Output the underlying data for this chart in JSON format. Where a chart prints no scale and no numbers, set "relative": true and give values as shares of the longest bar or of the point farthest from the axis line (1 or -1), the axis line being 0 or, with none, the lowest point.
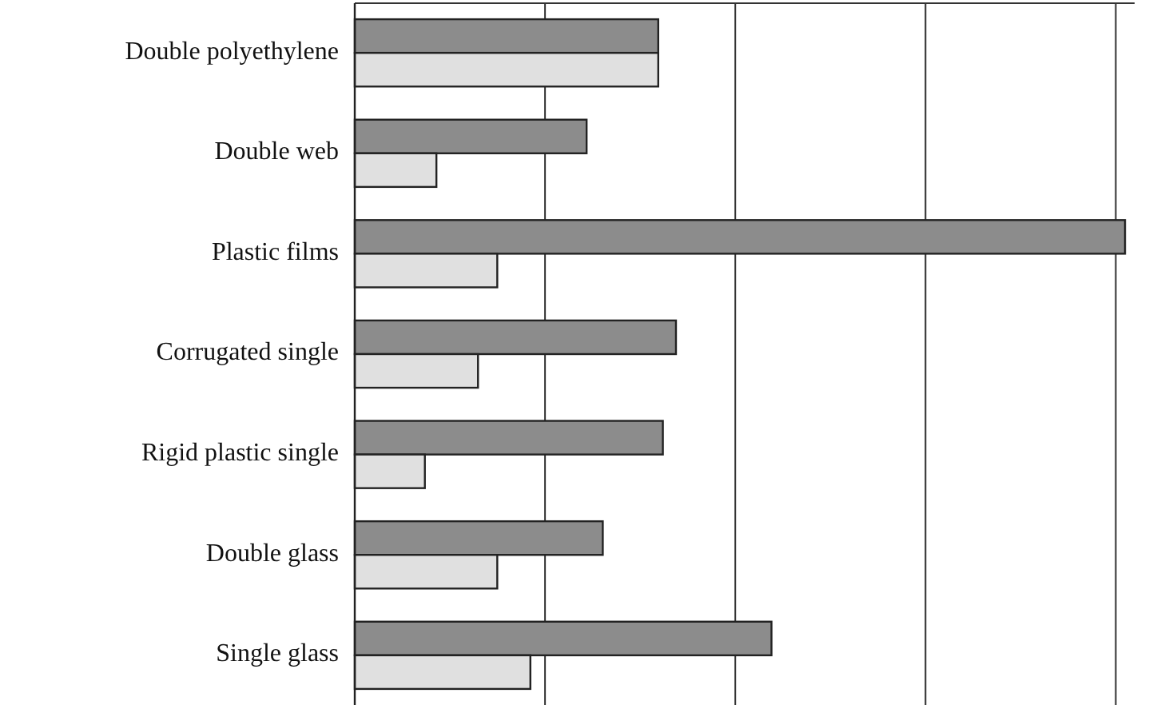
{
  "chart_data": {
    "type": "bar",
    "orientation": "horizontal",
    "relative": true,
    "grid": "x",
    "categories": [
      "Double polyethylene",
      "Double web",
      "Plastic films",
      "Corrugated single",
      "Rigid plastic single",
      "Double glass",
      "Single glass"
    ],
    "series": [
      {
        "color": "#8c8c8c",
        "values": [
          0.394,
          0.301,
          1,
          0.417,
          0.4,
          0.322,
          0.541
        ]
      },
      {
        "color": "#e0e0e0",
        "values": [
          0.394,
          0.106,
          0.185,
          0.16,
          0.091,
          0.185,
          0.228
        ]
      }
    ]
  }
}
